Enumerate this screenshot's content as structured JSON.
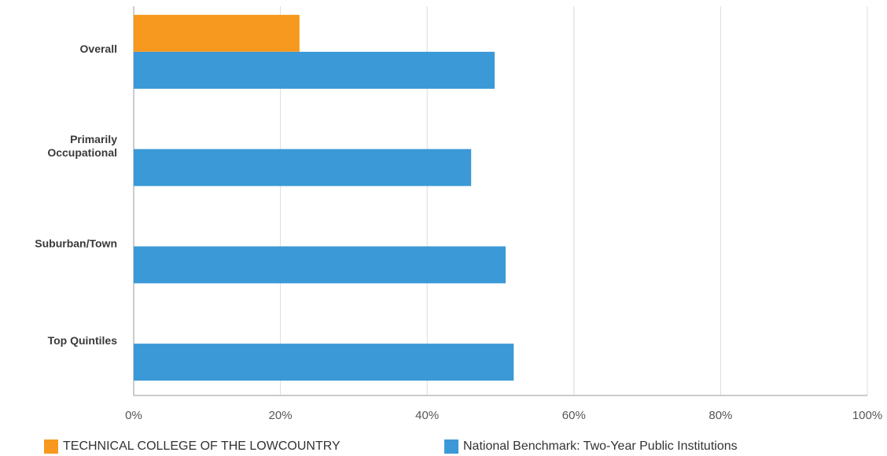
{
  "chart_data": {
    "type": "bar",
    "orientation": "horizontal",
    "categories": [
      "Overall",
      "Primarily Occupational",
      "Suburban/Town",
      "Top Quintiles"
    ],
    "series": [
      {
        "name": "TECHNICAL COLLEGE OF THE LOWCOUNTRY",
        "color": "#f7991e",
        "values": [
          22.6,
          null,
          null,
          null
        ]
      },
      {
        "name": "National Benchmark: Two-Year Public Institutions",
        "color": "#3a99d6",
        "values": [
          49.2,
          46.0,
          50.7,
          51.8
        ]
      }
    ],
    "xlim": [
      0,
      100
    ],
    "xticks": [
      0,
      20,
      40,
      60,
      80,
      100
    ],
    "xtick_labels": [
      "0%",
      "20%",
      "40%",
      "60%",
      "80%",
      "100%"
    ],
    "xlabel": "",
    "ylabel": "",
    "title": "",
    "grid": true,
    "legend_position": "bottom"
  },
  "legend": {
    "items": [
      {
        "label": "TECHNICAL COLLEGE OF THE LOWCOUNTRY",
        "color": "#f7991e"
      },
      {
        "label": "National Benchmark: Two-Year Public Institutions",
        "color": "#3a99d6"
      }
    ]
  }
}
